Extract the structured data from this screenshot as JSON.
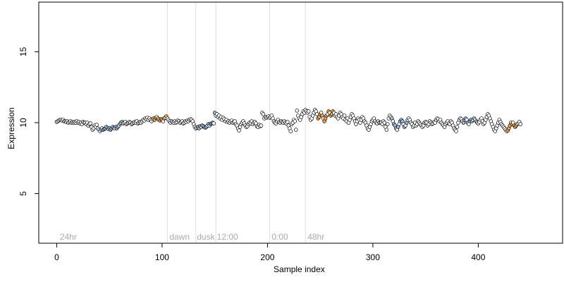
{
  "chart_data": {
    "type": "scatter",
    "xlabel": "Sample index",
    "ylabel": "Expression",
    "xlim": [
      -17,
      480
    ],
    "ylim": [
      1.5,
      18.5
    ],
    "x_ticks": [
      0,
      100,
      200,
      300,
      400
    ],
    "y_ticks": [
      5,
      10,
      15
    ],
    "vlines": [
      105,
      132,
      151,
      202,
      236
    ],
    "annotations": [
      {
        "text": "24hr",
        "x": 3
      },
      {
        "text": "dawn",
        "x": 107
      },
      {
        "text": "dusk",
        "x": 133
      },
      {
        "text": "12:00",
        "x": 152
      },
      {
        "text": "0:00",
        "x": 204
      },
      {
        "text": "48hr",
        "x": 238
      }
    ],
    "annotation_y": 2.0,
    "point_colors": {
      "default": "#ffffff",
      "orange": "#f5a64a",
      "blue": "#9dbfe7"
    },
    "highlight_ranges": [
      {
        "color": "blue",
        "from": 42,
        "to": 62
      },
      {
        "color": "orange",
        "from": 92,
        "to": 104
      },
      {
        "color": "blue",
        "from": 134,
        "to": 150
      },
      {
        "color": "orange",
        "from": 248,
        "to": 262
      },
      {
        "color": "blue",
        "from": 318,
        "to": 332
      },
      {
        "color": "blue",
        "from": 386,
        "to": 398
      },
      {
        "color": "orange",
        "from": 428,
        "to": 436
      }
    ],
    "y_values": [
      10.05,
      10.1,
      10.15,
      10.2,
      10.2,
      10.15,
      10.2,
      10.1,
      10.1,
      10.05,
      10.1,
      10.0,
      10.05,
      10.1,
      10.0,
      10.05,
      10.0,
      10.05,
      10.0,
      10.1,
      10.0,
      10.05,
      9.95,
      10.0,
      9.9,
      10.05,
      10.0,
      10.0,
      9.9,
      10.0,
      9.8,
      9.9,
      9.95,
      9.7,
      9.5,
      9.6,
      9.8,
      9.7,
      9.85,
      9.6,
      9.5,
      9.4,
      9.5,
      9.6,
      9.5,
      9.55,
      9.6,
      9.7,
      9.65,
      9.55,
      9.6,
      9.5,
      9.6,
      9.7,
      9.65,
      9.6,
      9.7,
      9.6,
      9.7,
      9.8,
      9.9,
      10.0,
      10.05,
      9.95,
      10.0,
      10.05,
      9.9,
      9.95,
      10.0,
      10.05,
      10.0,
      9.9,
      9.95,
      10.0,
      10.05,
      10.0,
      10.1,
      9.95,
      10.0,
      10.05,
      10.0,
      10.1,
      10.2,
      10.15,
      10.3,
      10.25,
      10.35,
      10.2,
      10.3,
      10.2,
      10.1,
      10.25,
      10.3,
      10.2,
      10.35,
      10.4,
      10.3,
      10.2,
      10.15,
      10.25,
      10.2,
      10.1,
      10.3,
      10.35,
      10.45,
      10.3,
      10.2,
      10.1,
      10.0,
      10.1,
      10.05,
      10.0,
      10.1,
      10.0,
      10.05,
      10.15,
      10.1,
      10.0,
      10.05,
      10.1,
      9.95,
      10.0,
      10.1,
      10.05,
      10.15,
      10.1,
      10.2,
      10.25,
      10.2,
      10.1,
      9.9,
      9.7,
      9.6,
      9.65,
      9.7,
      9.6,
      9.75,
      9.7,
      9.8,
      9.75,
      9.7,
      9.65,
      9.7,
      9.8,
      9.9,
      9.8,
      9.9,
      9.95,
      10.0,
      9.95,
      10.7,
      10.5,
      10.6,
      10.4,
      10.5,
      10.3,
      10.4,
      10.2,
      10.35,
      10.25,
      10.1,
      10.2,
      10.05,
      10.1,
      10.0,
      10.1,
      10.15,
      10.0,
      10.05,
      10.1,
      9.9,
      9.8,
      9.6,
      9.45,
      9.7,
      9.9,
      10.0,
      10.1,
      9.95,
      9.8,
      9.7,
      9.75,
      9.9,
      10.0,
      9.95,
      10.1,
      9.9,
      10.0,
      10.05,
      9.95,
      9.75,
      9.7,
      9.85,
      9.75,
      9.8,
      10.7,
      10.6,
      10.3,
      10.4,
      10.35,
      10.4,
      10.45,
      10.35,
      10.4,
      10.5,
      10.3,
      10.1,
      10.0,
      9.95,
      10.1,
      10.2,
      10.05,
      10.0,
      10.1,
      10.05,
      10.0,
      10.1,
      10.0,
      9.95,
      10.05,
      9.8,
      9.6,
      9.4,
      9.9,
      10.0,
      10.2,
      10.1,
      9.5,
      10.85,
      10.5,
      10.3,
      10.2,
      10.4,
      10.6,
      10.8,
      10.7,
      10.9,
      10.8,
      10.7,
      10.8,
      10.4,
      10.2,
      10.3,
      10.5,
      10.7,
      10.9,
      10.8,
      10.6,
      10.3,
      10.4,
      10.6,
      10.7,
      10.5,
      10.3,
      10.1,
      10.3,
      10.5,
      10.6,
      10.8,
      10.7,
      10.5,
      10.6,
      10.8,
      10.7,
      10.5,
      10.6,
      10.4,
      10.3,
      10.5,
      10.7,
      10.6,
      10.4,
      10.3,
      10.5,
      10.2,
      10.1,
      10.3,
      10.0,
      10.2,
      10.4,
      10.6,
      10.5,
      10.3,
      10.1,
      9.9,
      10.1,
      10.3,
      10.2,
      10.0,
      10.2,
      10.4,
      10.3,
      10.1,
      10.0,
      9.8,
      9.6,
      9.5,
      9.7,
      9.9,
      10.1,
      10.2,
      10.3,
      10.1,
      10.0,
      9.95,
      10.1,
      10.0,
      10.0,
      10.0,
      9.9,
      10.1,
      10.0,
      9.7,
      9.5,
      9.9,
      10.3,
      10.5,
      10.4,
      10.3,
      10.1,
      9.9,
      9.8,
      9.6,
      9.5,
      9.7,
      9.9,
      10.1,
      10.2,
      10.1,
      9.9,
      9.7,
      9.8,
      10.0,
      10.2,
      10.3,
      10.2,
      10.0,
      9.9,
      9.7,
      9.8,
      10.0,
      9.8,
      9.9,
      10.1,
      10.0,
      9.9,
      9.8,
      9.7,
      9.8,
      10.0,
      10.05,
      10.0,
      9.8,
      9.9,
      10.1,
      10.0,
      9.9,
      9.95,
      10.05,
      10.0,
      10.2,
      10.3,
      10.25,
      10.1,
      10.2,
      10.0,
      9.9,
      9.8,
      9.7,
      9.9,
      10.0,
      10.1,
      9.95,
      9.9,
      10.1,
      10.0,
      9.8,
      9.6,
      9.5,
      9.4,
      9.7,
      10.0,
      10.2,
      10.3,
      10.25,
      10.1,
      10.0,
      10.2,
      10.3,
      10.2,
      10.0,
      9.9,
      10.1,
      10.2,
      10.1,
      10.2,
      10.3,
      10.2,
      10.1,
      10.0,
      9.95,
      10.05,
      10.2,
      10.3,
      10.1,
      9.9,
      10.0,
      10.2,
      10.4,
      10.6,
      10.5,
      10.3,
      10.1,
      9.9,
      9.7,
      9.5,
      9.4,
      9.6,
      9.8,
      10.0,
      10.2,
      10.05,
      9.9,
      9.8,
      9.7,
      9.6,
      9.5,
      9.4,
      9.45,
      9.6,
      9.8,
      10.0,
      9.9,
      10.0,
      9.8,
      9.7,
      9.8,
      9.9,
      9.95,
      10.05,
      9.9
    ]
  }
}
